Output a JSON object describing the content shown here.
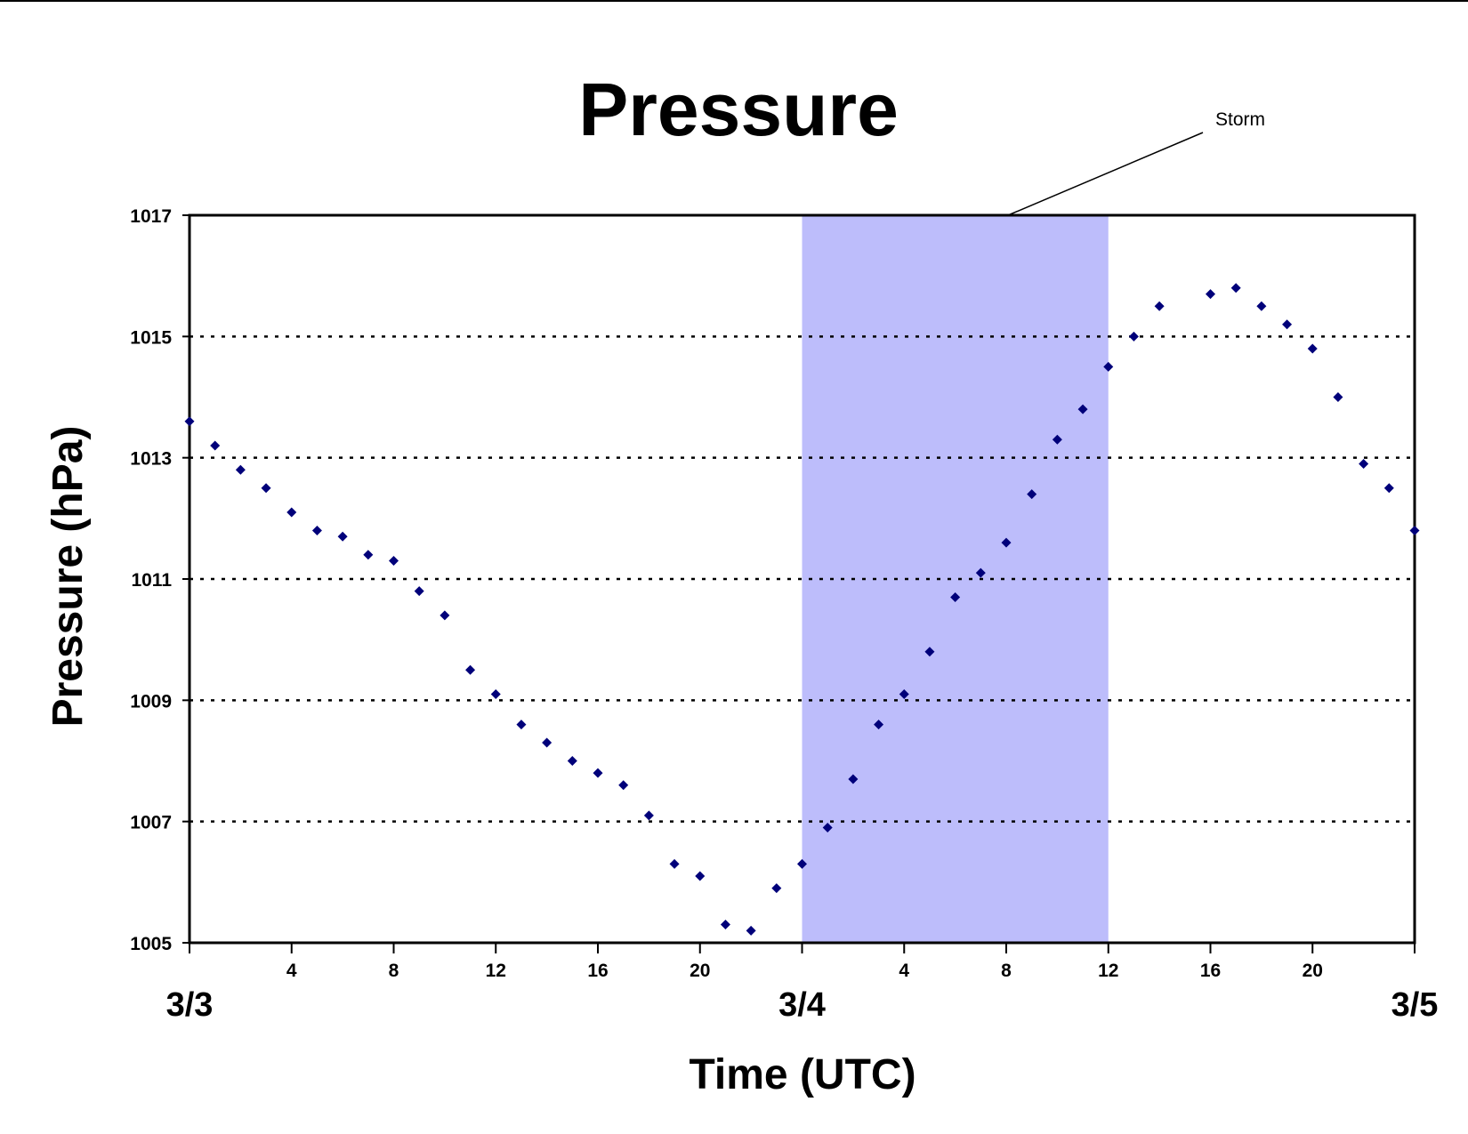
{
  "chart_data": {
    "type": "scatter",
    "title": "Pressure",
    "xlabel": "Time (UTC)",
    "ylabel": "Pressure (hPa)",
    "ylim": [
      1005,
      1017
    ],
    "yticks": [
      1005,
      1007,
      1009,
      1011,
      1013,
      1015,
      1017
    ],
    "xlim_hours": [
      0,
      48
    ],
    "xtick_hours": [
      0,
      4,
      8,
      12,
      16,
      20,
      24,
      28,
      32,
      36,
      40,
      44,
      48
    ],
    "xtick_labels": [
      "",
      "4",
      "8",
      "12",
      "16",
      "20",
      "",
      "4",
      "8",
      "12",
      "16",
      "20",
      ""
    ],
    "date_labels": [
      {
        "hour": 0,
        "label": "3/3"
      },
      {
        "hour": 24,
        "label": "3/4"
      },
      {
        "hour": 48,
        "label": "3/5"
      }
    ],
    "grid": "horizontal dotted",
    "highlight": {
      "label": "Storm",
      "x_start_hour": 24,
      "x_end_hour": 36,
      "color": "#bdbdfb"
    },
    "marker_color": "#00007a",
    "series": [
      {
        "x": [
          0,
          1,
          2,
          3,
          4,
          5,
          6,
          7,
          8,
          9,
          10,
          11,
          12,
          13,
          14,
          15,
          16,
          17,
          18,
          19,
          20,
          21,
          22,
          23,
          24,
          25,
          26,
          27,
          28,
          29,
          30,
          31,
          32,
          33,
          34,
          35,
          36,
          37,
          38,
          39,
          40,
          41,
          42,
          43,
          44,
          45,
          46,
          47,
          48
        ],
        "values": [
          1013.6,
          1013.2,
          1012.8,
          1012.5,
          1012.1,
          1011.8,
          1011.7,
          1011.4,
          1011.3,
          1010.8,
          1010.4,
          1009.5,
          1009.1,
          1008.6,
          1008.3,
          1008.0,
          1007.8,
          1007.6,
          1007.1,
          1006.3,
          1006.1,
          1005.3,
          1005.2,
          1005.9,
          1006.3,
          1006.9,
          1007.7,
          1008.6,
          1009.1,
          1009.8,
          1010.7,
          1011.1,
          1011.6,
          1012.4,
          1013.3,
          1013.8,
          1014.5,
          1015.0,
          1015.5,
          null,
          1015.7,
          1015.8,
          1015.5,
          1015.2,
          1014.8,
          1014.0,
          1012.9,
          1012.5,
          1011.8
        ]
      }
    ]
  }
}
